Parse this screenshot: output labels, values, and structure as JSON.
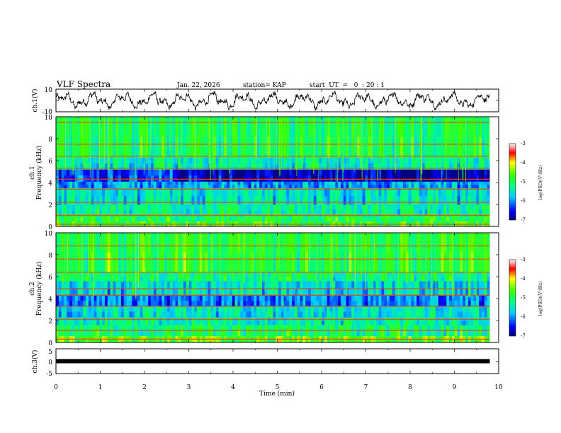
{
  "header": {
    "title": "VLF Spectra",
    "date": "Jan. 22, 2026",
    "station": "station= KAP",
    "start": "start  UT  =   0  : 20 : 1"
  },
  "chart_data": [
    {
      "type": "line",
      "name": "ch1-voltage",
      "ylabel": "ch.1(V)",
      "ylim": [
        -10,
        10
      ],
      "yticks": [
        "10",
        "-10"
      ],
      "xlim": [
        0,
        10
      ],
      "x_end": 9.8,
      "description_values": "oscillating waveform roughly between -8 and 8 V"
    },
    {
      "type": "heatmap",
      "name": "ch1-spectrogram",
      "ylabel_line1": "ch.1",
      "ylabel_line2": "Frequency (kHz)",
      "ylim": [
        0,
        10
      ],
      "yticks": [
        "0",
        "2",
        "4",
        "6",
        "8",
        "10"
      ],
      "xlim": [
        0,
        9.8
      ],
      "colorbar": {
        "label": "log(PSD)(V²/Hz)",
        "ticks": [
          "-3",
          "-4",
          "-5",
          "-6",
          "-7"
        ],
        "range": [
          -7,
          -3
        ]
      },
      "bands": [
        {
          "from": 0.0,
          "to": 0.5,
          "level": -4.8
        },
        {
          "from": 0.5,
          "to": 1.1,
          "level": -5.0
        },
        {
          "from": 1.1,
          "to": 2.0,
          "level": -5.3
        },
        {
          "from": 2.0,
          "to": 3.5,
          "level": -5.6
        },
        {
          "from": 3.5,
          "to": 4.1,
          "level": -5.9
        },
        {
          "from": 4.1,
          "to": 5.2,
          "level": -6.3
        },
        {
          "from": 5.2,
          "to": 6.3,
          "level": -5.4
        },
        {
          "from": 6.3,
          "to": 10.0,
          "level": -5.0
        }
      ],
      "lines": [
        0.2,
        1.0,
        2.2,
        3.4,
        4.3,
        5.3,
        6.4,
        7.5,
        9.5
      ],
      "dark_region": {
        "x_from": 2.8,
        "f_from": 4.1,
        "f_to": 5.2
      }
    },
    {
      "type": "heatmap",
      "name": "ch2-spectrogram",
      "ylabel_line1": "ch.2",
      "ylabel_line2": "Frequency (kHz)",
      "ylim": [
        0,
        10
      ],
      "yticks": [
        "0",
        "2",
        "4",
        "6",
        "8",
        "10"
      ],
      "xlim": [
        0,
        9.8
      ],
      "colorbar": {
        "label": "log(PSD)(V²/Hz)",
        "ticks": [
          "-3",
          "-4",
          "-5",
          "-6",
          "-7"
        ],
        "range": [
          -7,
          -3
        ]
      },
      "bands": [
        {
          "from": 0.0,
          "to": 0.6,
          "level": -4.6
        },
        {
          "from": 0.6,
          "to": 1.6,
          "level": -5.1
        },
        {
          "from": 1.6,
          "to": 2.3,
          "level": -5.4
        },
        {
          "from": 2.3,
          "to": 3.3,
          "level": -5.5
        },
        {
          "from": 3.3,
          "to": 4.3,
          "level": -6.1
        },
        {
          "from": 4.3,
          "to": 5.6,
          "level": -5.6
        },
        {
          "from": 5.6,
          "to": 6.4,
          "level": -5.2
        },
        {
          "from": 6.4,
          "to": 10.0,
          "level": -4.9
        }
      ],
      "lines": [
        0.3,
        1.1,
        2.1,
        3.3,
        4.3,
        4.9,
        6.4,
        7.6,
        8.8
      ],
      "dark_region": {
        "x_from": 4.0,
        "f_from": 3.6,
        "f_to": 4.3
      }
    },
    {
      "type": "line",
      "name": "ch3-voltage",
      "ylabel": "ch.3(V)",
      "ylim": [
        -5,
        5
      ],
      "yticks": [
        "5",
        "0",
        "-5"
      ],
      "xlim": [
        0,
        10
      ],
      "x_end": 9.8,
      "level_V": 0.0
    }
  ],
  "xaxis": {
    "label": "Time (min)",
    "ticks": [
      "0",
      "1",
      "2",
      "3",
      "4",
      "5",
      "6",
      "7",
      "8",
      "9",
      "10"
    ]
  }
}
